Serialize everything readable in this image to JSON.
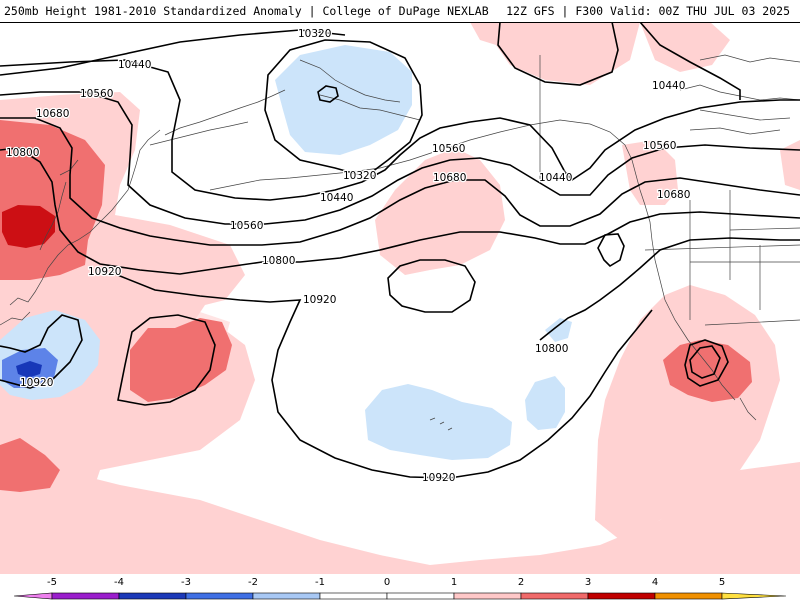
{
  "header": {
    "title_left": "250mb Height 1981-2010 Standardized Anomaly | College of DuPage NEXLAB",
    "title_right": "12Z GFS | F300 Valid: 00Z THU JUL 03 2025"
  },
  "contour_labels": [
    {
      "id": "c10320a",
      "text": "10320"
    },
    {
      "id": "c10320b",
      "text": "10320"
    },
    {
      "id": "c10440a",
      "text": "10440"
    },
    {
      "id": "c10440b",
      "text": "10440"
    },
    {
      "id": "c10440c",
      "text": "10440"
    },
    {
      "id": "c10440d",
      "text": "10440"
    },
    {
      "id": "c10560a",
      "text": "10560"
    },
    {
      "id": "c10560b",
      "text": "10560"
    },
    {
      "id": "c10560c",
      "text": "10560"
    },
    {
      "id": "c10560d",
      "text": "10560"
    },
    {
      "id": "c10680a",
      "text": "10680"
    },
    {
      "id": "c10680b",
      "text": "10680"
    },
    {
      "id": "c10680c",
      "text": "10680"
    },
    {
      "id": "c10800a",
      "text": "10800"
    },
    {
      "id": "c10800b",
      "text": "10800"
    },
    {
      "id": "c10800c",
      "text": "10800"
    },
    {
      "id": "c10920a",
      "text": "10920"
    },
    {
      "id": "c10920b",
      "text": "10920"
    },
    {
      "id": "c10920c",
      "text": "10920"
    },
    {
      "id": "c10920d",
      "text": "10920"
    }
  ],
  "colorbar": {
    "ticks": [
      "-5",
      "-4",
      "-3",
      "-2",
      "-1",
      "0",
      "1",
      "2",
      "3",
      "4",
      "5"
    ],
    "colors": [
      "#ee80ee",
      "#9a1ecc",
      "#1c39b8",
      "#3f6fe4",
      "#a8c8f4",
      "#ffffff",
      "#ffffff",
      "#ffc8c8",
      "#f06a6a",
      "#c00000",
      "#f09000",
      "#ffe040"
    ]
  },
  "colors": {
    "pos1": "#ffd2d2",
    "pos2": "#f07070",
    "pos3": "#cc0f14",
    "neg1": "#cce4fa",
    "neg2": "#5d83e8",
    "neg3": "#1737b8",
    "contour": "#000000",
    "coast": "#444444"
  }
}
